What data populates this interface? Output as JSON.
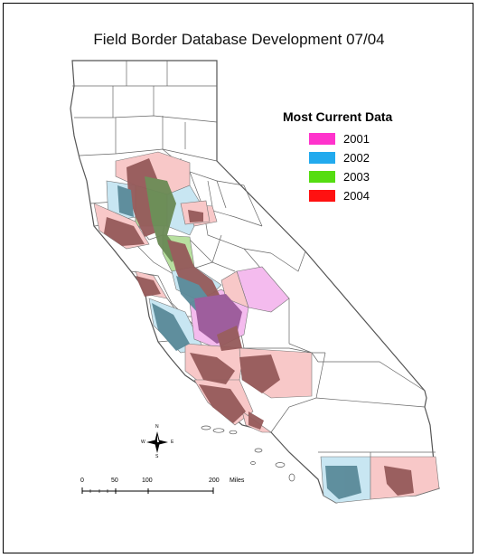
{
  "title": "Field Border Database Development 07/04",
  "legend": {
    "title": "Most Current Data",
    "items": [
      {
        "label": "2001",
        "color": "#ff33cc"
      },
      {
        "label": "2002",
        "color": "#22aaee"
      },
      {
        "label": "2003",
        "color": "#55dd11"
      },
      {
        "label": "2004",
        "color": "#ff1111"
      }
    ]
  },
  "scale_bar": {
    "ticks": [
      "0",
      "50",
      "100",
      "200"
    ],
    "unit": "Miles"
  },
  "compass": {
    "n": "N",
    "s": "S",
    "e": "E",
    "w": "W"
  },
  "map_colors": {
    "outline": "#555555",
    "county_fill": "#ffffff",
    "pink_light": "#f8c8c8",
    "blue_light": "#c8e6f2",
    "green_light": "#b8e0a0",
    "magenta_light": "#f4bbee",
    "crop_brown": "#955a5a",
    "crop_teal": "#5a8a99",
    "crop_olive": "#6a8a55",
    "crop_purple": "#9a5a99"
  }
}
